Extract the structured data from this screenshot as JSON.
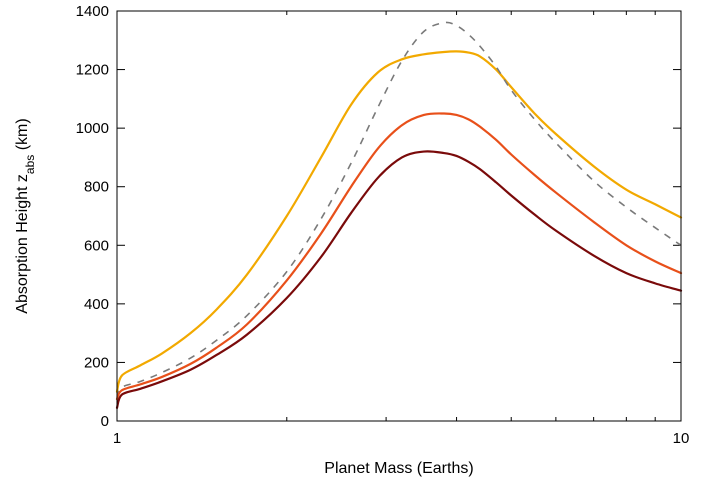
{
  "chart_data": {
    "type": "line",
    "xlabel": "Planet Mass (Earths)",
    "ylabel": {
      "main": "Absorption Height  z",
      "subscript": "abs",
      "suffix": " (km)"
    },
    "xscale": "log",
    "xlim": [
      1,
      10
    ],
    "ylim": [
      0,
      1400
    ],
    "grid": false,
    "legend": "none",
    "x_ticks": [
      {
        "value": 1,
        "label": "1"
      },
      {
        "value": 10,
        "label": "10"
      }
    ],
    "x_minor_ticks": [
      2,
      3,
      4,
      5,
      6,
      7,
      8,
      9
    ],
    "y_ticks": [
      {
        "value": 0,
        "label": "0"
      },
      {
        "value": 200,
        "label": "200"
      },
      {
        "value": 400,
        "label": "400"
      },
      {
        "value": 600,
        "label": "600"
      },
      {
        "value": 800,
        "label": "800"
      },
      {
        "value": 1000,
        "label": "1000"
      },
      {
        "value": 1200,
        "label": "1200"
      },
      {
        "value": 1400,
        "label": "1400"
      }
    ],
    "series": [
      {
        "color": "#f2a900",
        "dash": "solid",
        "x": [
          1.0,
          1.02,
          1.1,
          1.2,
          1.35,
          1.5,
          1.7,
          2.0,
          2.3,
          2.6,
          2.9,
          3.2,
          3.5,
          3.8,
          4.0,
          4.2,
          4.4,
          4.7,
          5.0,
          5.5,
          6.0,
          7.0,
          8.0,
          9.0,
          10.0
        ],
        "y": [
          100,
          155,
          190,
          230,
          300,
          380,
          500,
          700,
          900,
          1080,
          1190,
          1235,
          1252,
          1260,
          1262,
          1258,
          1245,
          1200,
          1140,
          1050,
          980,
          870,
          790,
          740,
          695
        ]
      },
      {
        "color": "#7a7a7a",
        "dash": "dashed",
        "x": [
          1.0,
          1.02,
          1.1,
          1.2,
          1.35,
          1.5,
          1.7,
          2.0,
          2.3,
          2.6,
          2.9,
          3.2,
          3.5,
          3.8,
          4.0,
          4.2,
          4.4,
          4.7,
          5.0,
          5.5,
          6.0,
          7.0,
          8.0,
          9.0,
          10.0
        ],
        "y": [
          80,
          115,
          135,
          165,
          215,
          275,
          360,
          510,
          690,
          880,
          1070,
          1230,
          1330,
          1360,
          1350,
          1320,
          1280,
          1210,
          1130,
          1030,
          950,
          820,
          730,
          660,
          600
        ]
      },
      {
        "color": "#e8501a",
        "dash": "solid",
        "x": [
          1.0,
          1.02,
          1.1,
          1.2,
          1.35,
          1.5,
          1.7,
          2.0,
          2.3,
          2.6,
          2.9,
          3.2,
          3.5,
          3.8,
          4.0,
          4.2,
          4.4,
          4.7,
          5.0,
          5.5,
          6.0,
          7.0,
          8.0,
          9.0,
          10.0
        ],
        "y": [
          75,
          105,
          125,
          150,
          195,
          250,
          330,
          480,
          640,
          800,
          930,
          1010,
          1045,
          1050,
          1045,
          1030,
          1005,
          960,
          910,
          840,
          780,
          680,
          600,
          545,
          505
        ]
      },
      {
        "color": "#7a0a0a",
        "dash": "solid",
        "x": [
          1.0,
          1.02,
          1.1,
          1.2,
          1.35,
          1.5,
          1.7,
          2.0,
          2.3,
          2.6,
          2.9,
          3.2,
          3.5,
          3.8,
          4.0,
          4.2,
          4.4,
          4.7,
          5.0,
          5.5,
          6.0,
          7.0,
          8.0,
          9.0,
          10.0
        ],
        "y": [
          45,
          90,
          110,
          135,
          175,
          225,
          295,
          420,
          560,
          710,
          830,
          900,
          920,
          915,
          905,
          885,
          860,
          815,
          770,
          705,
          650,
          565,
          505,
          470,
          445
        ]
      }
    ]
  }
}
